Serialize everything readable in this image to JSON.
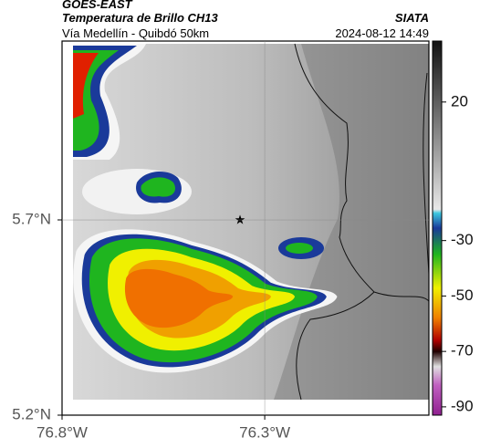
{
  "header": {
    "source": "GOES-EAST",
    "title": "Temperatura de Brillo CH13",
    "brand": "SIATA",
    "route": "Vía Medellín - Quibdó 50km",
    "datetime": "2024-08-12 14:49"
  },
  "map": {
    "xlim": [
      -76.8,
      -75.895
    ],
    "ylim": [
      5.2,
      6.158
    ],
    "xticks": [
      {
        "value": -76.8,
        "label": "76.8°W"
      },
      {
        "value": -76.3,
        "label": "76.3°W"
      }
    ],
    "yticks": [
      {
        "value": 5.2,
        "label": "5.2°N"
      },
      {
        "value": 5.7,
        "label": "5.7°N"
      }
    ],
    "grid": true
  },
  "colorbar": {
    "lim": [
      -93,
      42
    ],
    "ticks": [
      20,
      -30,
      -50,
      -70,
      -90
    ]
  }
}
